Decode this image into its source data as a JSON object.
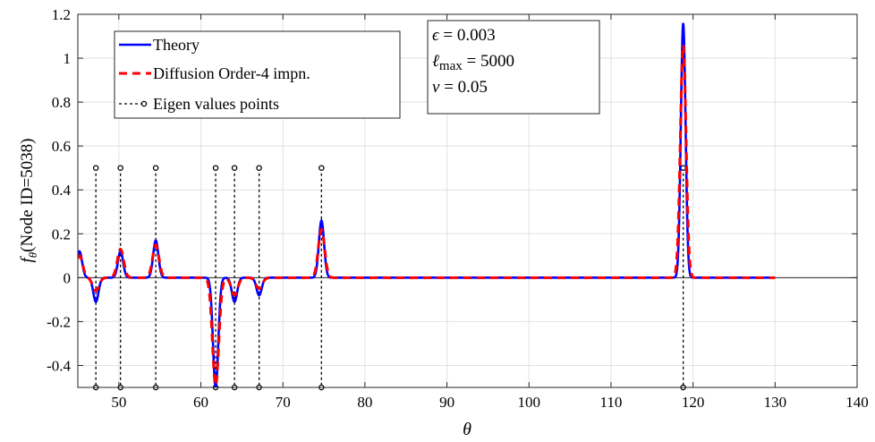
{
  "chart_data": {
    "type": "line",
    "xlabel": "θ",
    "ylabel": "f_θ(Node ID=5038)",
    "ylabel_parts": {
      "f": "f",
      "sub": "θ",
      "rest": "(Node ID=5038)"
    },
    "xlim": [
      45,
      140
    ],
    "ylim": [
      -0.5,
      1.2
    ],
    "xticks": [
      50,
      60,
      70,
      80,
      90,
      100,
      110,
      120,
      130,
      140
    ],
    "xtick_labels": [
      "50",
      "60",
      "70",
      "80",
      "90",
      "100",
      "110",
      "120",
      "130",
      "140"
    ],
    "yticks": [
      -0.4,
      -0.2,
      0,
      0.2,
      0.4,
      0.6,
      0.8,
      1,
      1.2
    ],
    "ytick_labels": [
      "-0.4",
      "-0.2",
      "0",
      "0.2",
      "0.4",
      "0.6",
      "0.8",
      "1",
      "1.2"
    ],
    "grid": true,
    "legend_position": "top-left",
    "series": [
      {
        "name": "Theory",
        "color": "#0000ff",
        "style": "solid",
        "x_range": [
          45,
          130
        ],
        "baseline_peaks": [
          {
            "x": 45.2,
            "y": 0.12
          },
          {
            "x": 47.2,
            "y": -0.11
          },
          {
            "x": 50.2,
            "y": 0.12
          },
          {
            "x": 54.5,
            "y": 0.17
          },
          {
            "x": 61.8,
            "y": -0.5
          },
          {
            "x": 64.1,
            "y": -0.11
          },
          {
            "x": 67.1,
            "y": -0.08
          },
          {
            "x": 74.7,
            "y": 0.26
          },
          {
            "x": 118.8,
            "y": 1.16
          }
        ]
      },
      {
        "name": "Diffusion Order-4 impn.",
        "color": "#ff0000",
        "style": "dashed",
        "x_range": [
          45,
          130
        ],
        "baseline_peaks": [
          {
            "x": 45.2,
            "y": 0.1
          },
          {
            "x": 47.2,
            "y": -0.06
          },
          {
            "x": 50.2,
            "y": 0.13
          },
          {
            "x": 54.5,
            "y": 0.15
          },
          {
            "x": 61.8,
            "y": -0.49
          },
          {
            "x": 64.1,
            "y": -0.08
          },
          {
            "x": 67.1,
            "y": -0.05
          },
          {
            "x": 74.7,
            "y": 0.22
          },
          {
            "x": 118.8,
            "y": 1.06
          }
        ]
      },
      {
        "name": "Eigen values points",
        "color": "#000000",
        "style": "dotted-with-circles",
        "x": [
          47.2,
          50.2,
          54.5,
          61.8,
          64.1,
          67.1,
          74.7,
          118.8
        ],
        "y_top": 0.5,
        "y_bottom": -0.5
      }
    ],
    "annotations": [
      {
        "lines": [
          "ϵ = 0.003",
          "ℓmax = 5000",
          "v = 0.05"
        ]
      }
    ],
    "annotation_parts": {
      "eps_sym": "ϵ",
      "eps_val": " = 0.003",
      "lmax_sym": "ℓ",
      "lmax_sub": "max",
      "lmax_val": " = 5000",
      "v_sym": "v",
      "v_val": " = 0.05"
    }
  }
}
